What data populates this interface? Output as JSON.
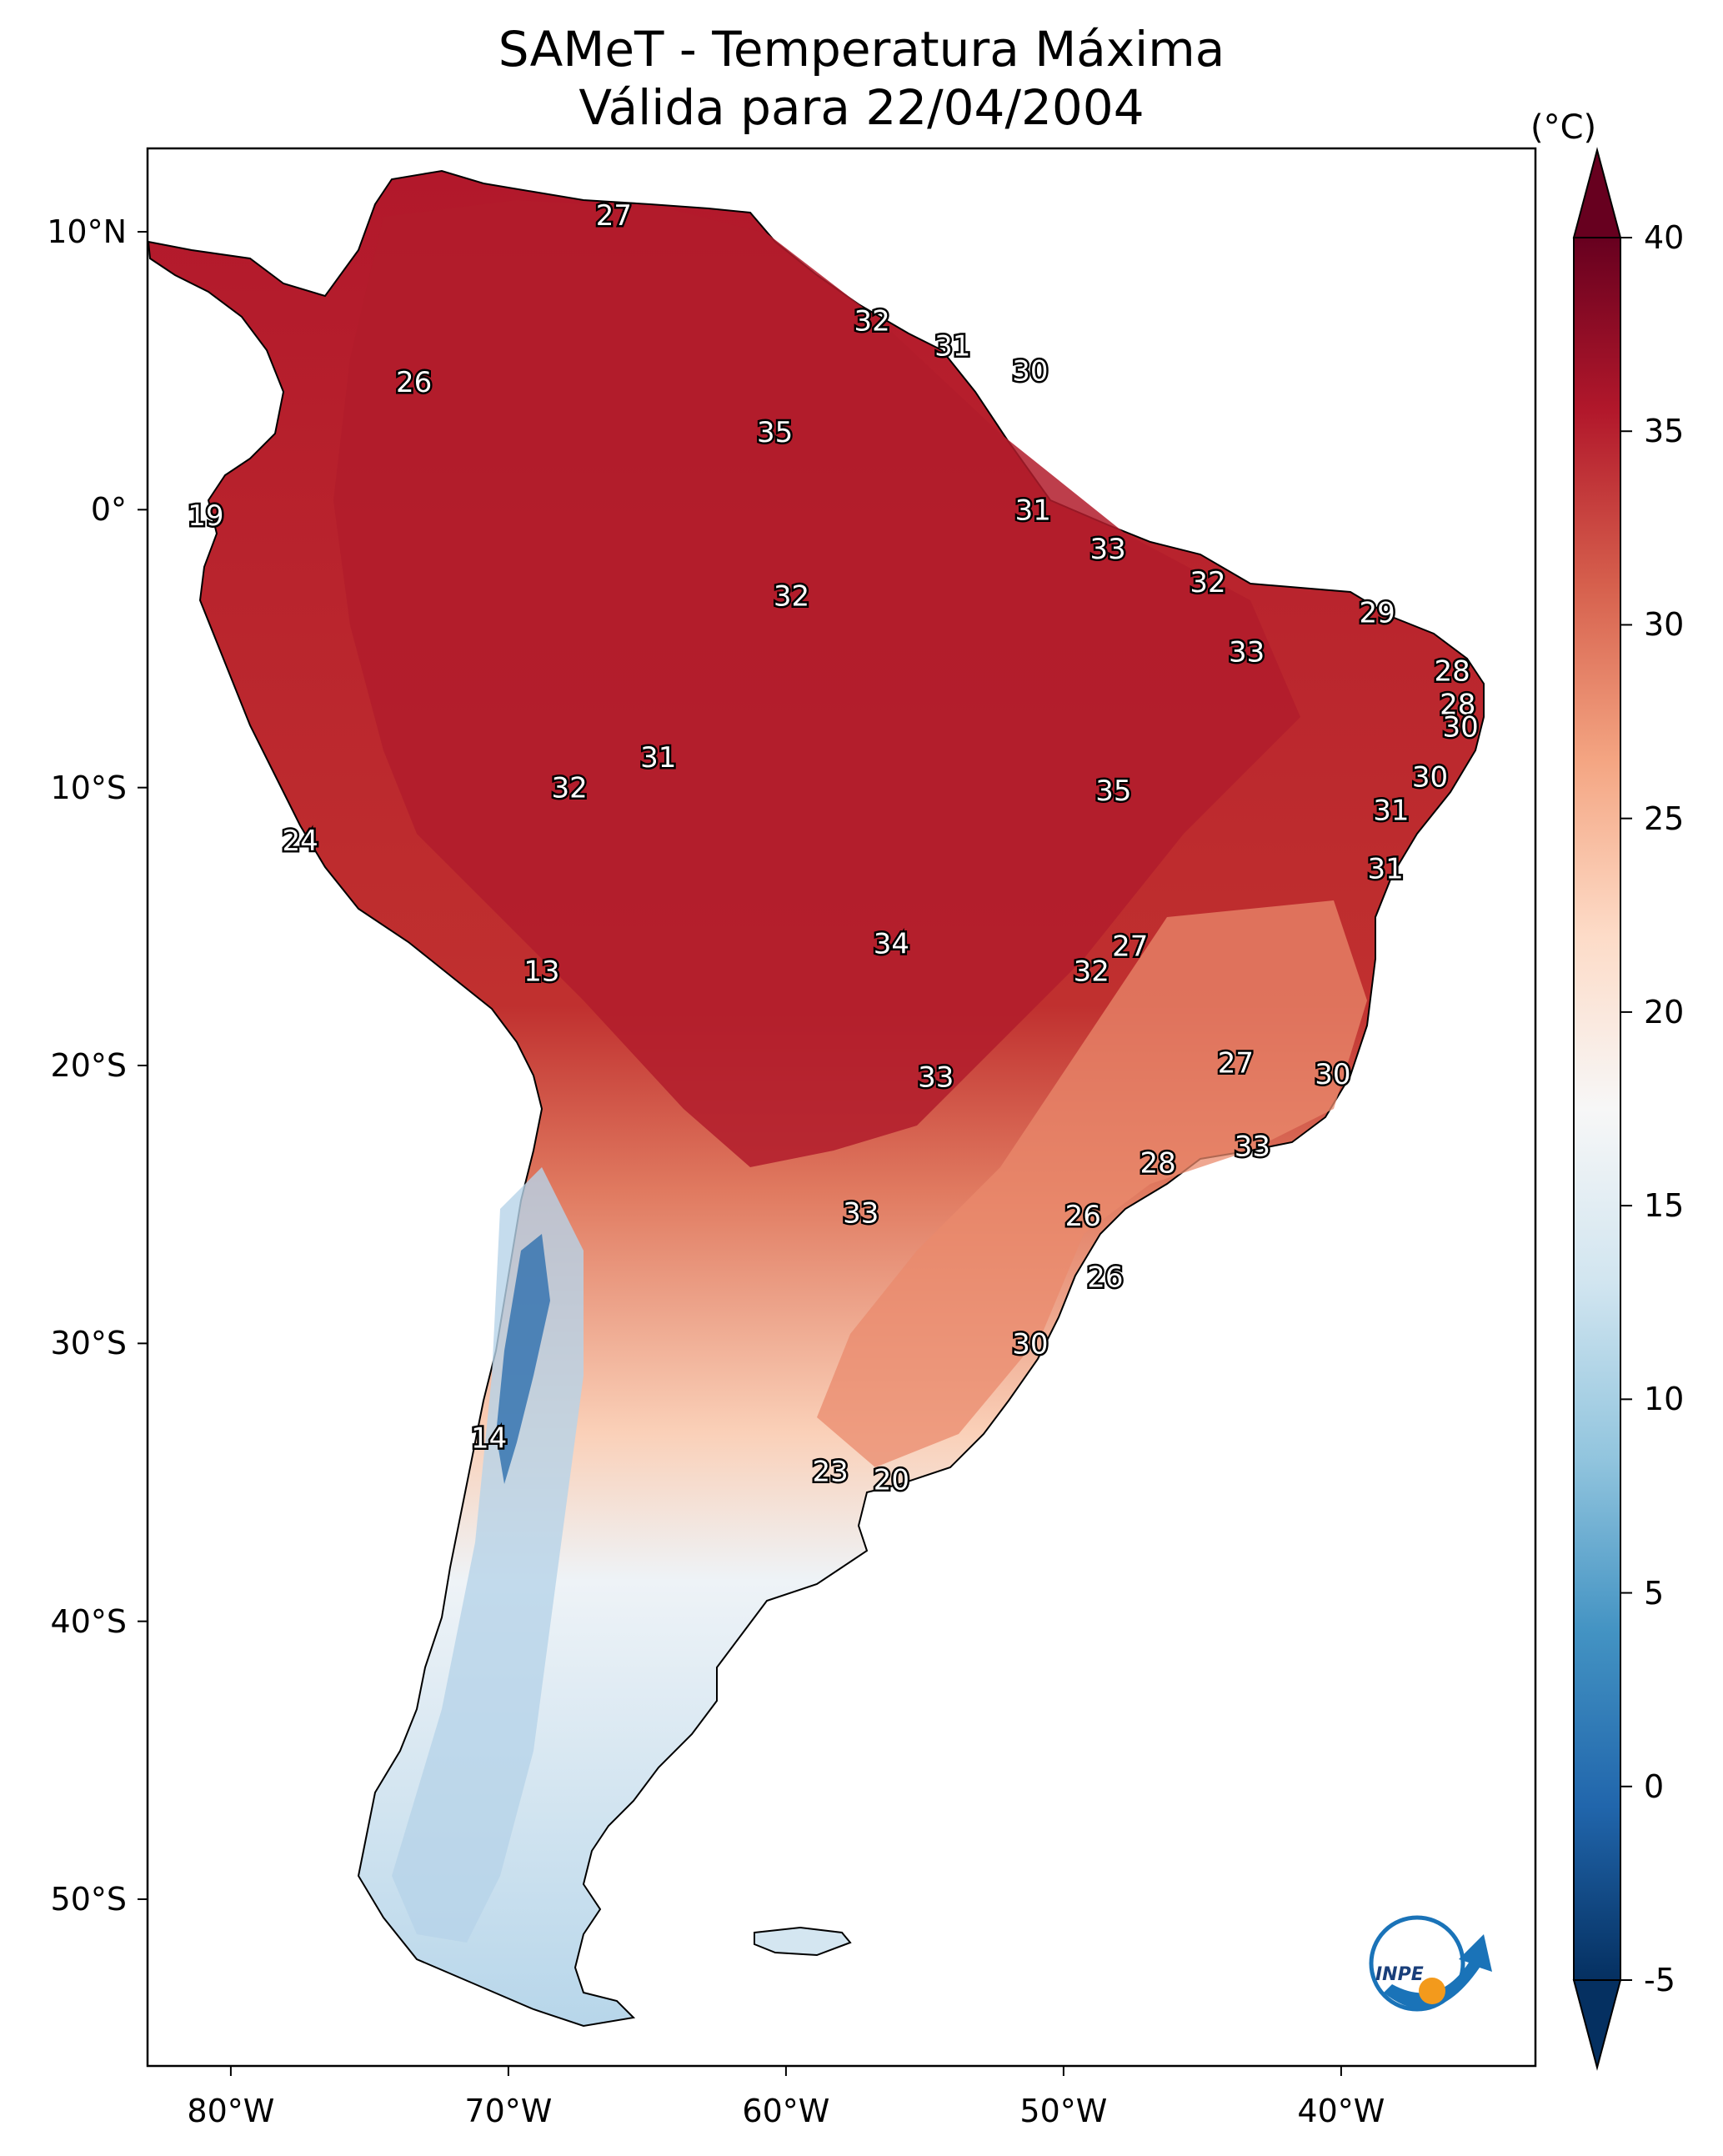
{
  "title": {
    "line1": "SAMeT - Temperatura Máxima",
    "line2": "Válida para 22/04/2004"
  },
  "axes": {
    "lat_ticks": [
      {
        "value": 10,
        "label": "10°N"
      },
      {
        "value": 0,
        "label": "0°"
      },
      {
        "value": -10,
        "label": "10°S"
      },
      {
        "value": -20,
        "label": "20°S"
      },
      {
        "value": -30,
        "label": "30°S"
      },
      {
        "value": -40,
        "label": "40°S"
      },
      {
        "value": -50,
        "label": "50°S"
      }
    ],
    "lon_ticks": [
      {
        "value": -80,
        "label": "80°W"
      },
      {
        "value": -70,
        "label": "70°W"
      },
      {
        "value": -60,
        "label": "60°W"
      },
      {
        "value": -50,
        "label": "50°W"
      },
      {
        "value": -40,
        "label": "40°W"
      }
    ],
    "lon_range": [
      -83,
      -33
    ],
    "lat_range": [
      -56,
      13
    ]
  },
  "colorbar": {
    "unit": "(°C)",
    "ticks": [
      "-5",
      "0",
      "5",
      "10",
      "15",
      "20",
      "25",
      "30",
      "35",
      "40"
    ],
    "range": [
      -5,
      40
    ],
    "colormap": "RdBu_r",
    "colors": [
      "#053061",
      "#2166ac",
      "#4393c3",
      "#92c5de",
      "#d1e5f0",
      "#f7f7f7",
      "#fddbc7",
      "#f4a582",
      "#d6604d",
      "#b2182b",
      "#67001f"
    ]
  },
  "station_labels": [
    {
      "lon": -66.2,
      "lat": 10.6,
      "value": "27"
    },
    {
      "lon": -56.9,
      "lat": 6.8,
      "value": "32"
    },
    {
      "lon": -54.0,
      "lat": 5.9,
      "value": "31"
    },
    {
      "lon": -51.2,
      "lat": 5.0,
      "value": "30"
    },
    {
      "lon": -73.4,
      "lat": 4.6,
      "value": "26"
    },
    {
      "lon": -60.4,
      "lat": 2.8,
      "value": "35"
    },
    {
      "lon": -51.1,
      "lat": 0.0,
      "value": "31"
    },
    {
      "lon": -80.9,
      "lat": -0.2,
      "value": "19"
    },
    {
      "lon": -48.4,
      "lat": -1.4,
      "value": "33"
    },
    {
      "lon": -44.8,
      "lat": -2.6,
      "value": "32"
    },
    {
      "lon": -59.8,
      "lat": -3.1,
      "value": "32"
    },
    {
      "lon": -38.7,
      "lat": -3.7,
      "value": "29"
    },
    {
      "lon": -43.4,
      "lat": -5.1,
      "value": "33"
    },
    {
      "lon": -36.0,
      "lat": -5.8,
      "value": "28"
    },
    {
      "lon": -35.8,
      "lat": -7.0,
      "value": "28"
    },
    {
      "lon": -35.7,
      "lat": -7.8,
      "value": "30"
    },
    {
      "lon": -64.6,
      "lat": -8.9,
      "value": "31"
    },
    {
      "lon": -36.8,
      "lat": -9.6,
      "value": "30"
    },
    {
      "lon": -67.8,
      "lat": -10.0,
      "value": "32"
    },
    {
      "lon": -48.2,
      "lat": -10.1,
      "value": "35"
    },
    {
      "lon": -38.2,
      "lat": -10.8,
      "value": "31"
    },
    {
      "lon": -77.5,
      "lat": -11.9,
      "value": "24"
    },
    {
      "lon": -38.4,
      "lat": -12.9,
      "value": "31"
    },
    {
      "lon": -56.2,
      "lat": -15.6,
      "value": "34"
    },
    {
      "lon": -47.6,
      "lat": -15.7,
      "value": "27"
    },
    {
      "lon": -49.0,
      "lat": -16.6,
      "value": "32"
    },
    {
      "lon": -68.8,
      "lat": -16.6,
      "value": "13"
    },
    {
      "lon": -43.8,
      "lat": -19.9,
      "value": "27"
    },
    {
      "lon": -54.6,
      "lat": -20.4,
      "value": "33"
    },
    {
      "lon": -40.3,
      "lat": -20.3,
      "value": "30"
    },
    {
      "lon": -43.2,
      "lat": -22.9,
      "value": "33"
    },
    {
      "lon": -46.6,
      "lat": -23.5,
      "value": "28"
    },
    {
      "lon": -57.3,
      "lat": -25.3,
      "value": "33"
    },
    {
      "lon": -49.3,
      "lat": -25.4,
      "value": "26"
    },
    {
      "lon": -48.5,
      "lat": -27.6,
      "value": "26"
    },
    {
      "lon": -51.2,
      "lat": -30.0,
      "value": "30"
    },
    {
      "lon": -70.7,
      "lat": -33.4,
      "value": "14"
    },
    {
      "lon": -58.4,
      "lat": -34.6,
      "value": "23"
    },
    {
      "lon": -56.2,
      "lat": -34.9,
      "value": "20"
    }
  ],
  "logo": {
    "text": "INPE"
  }
}
